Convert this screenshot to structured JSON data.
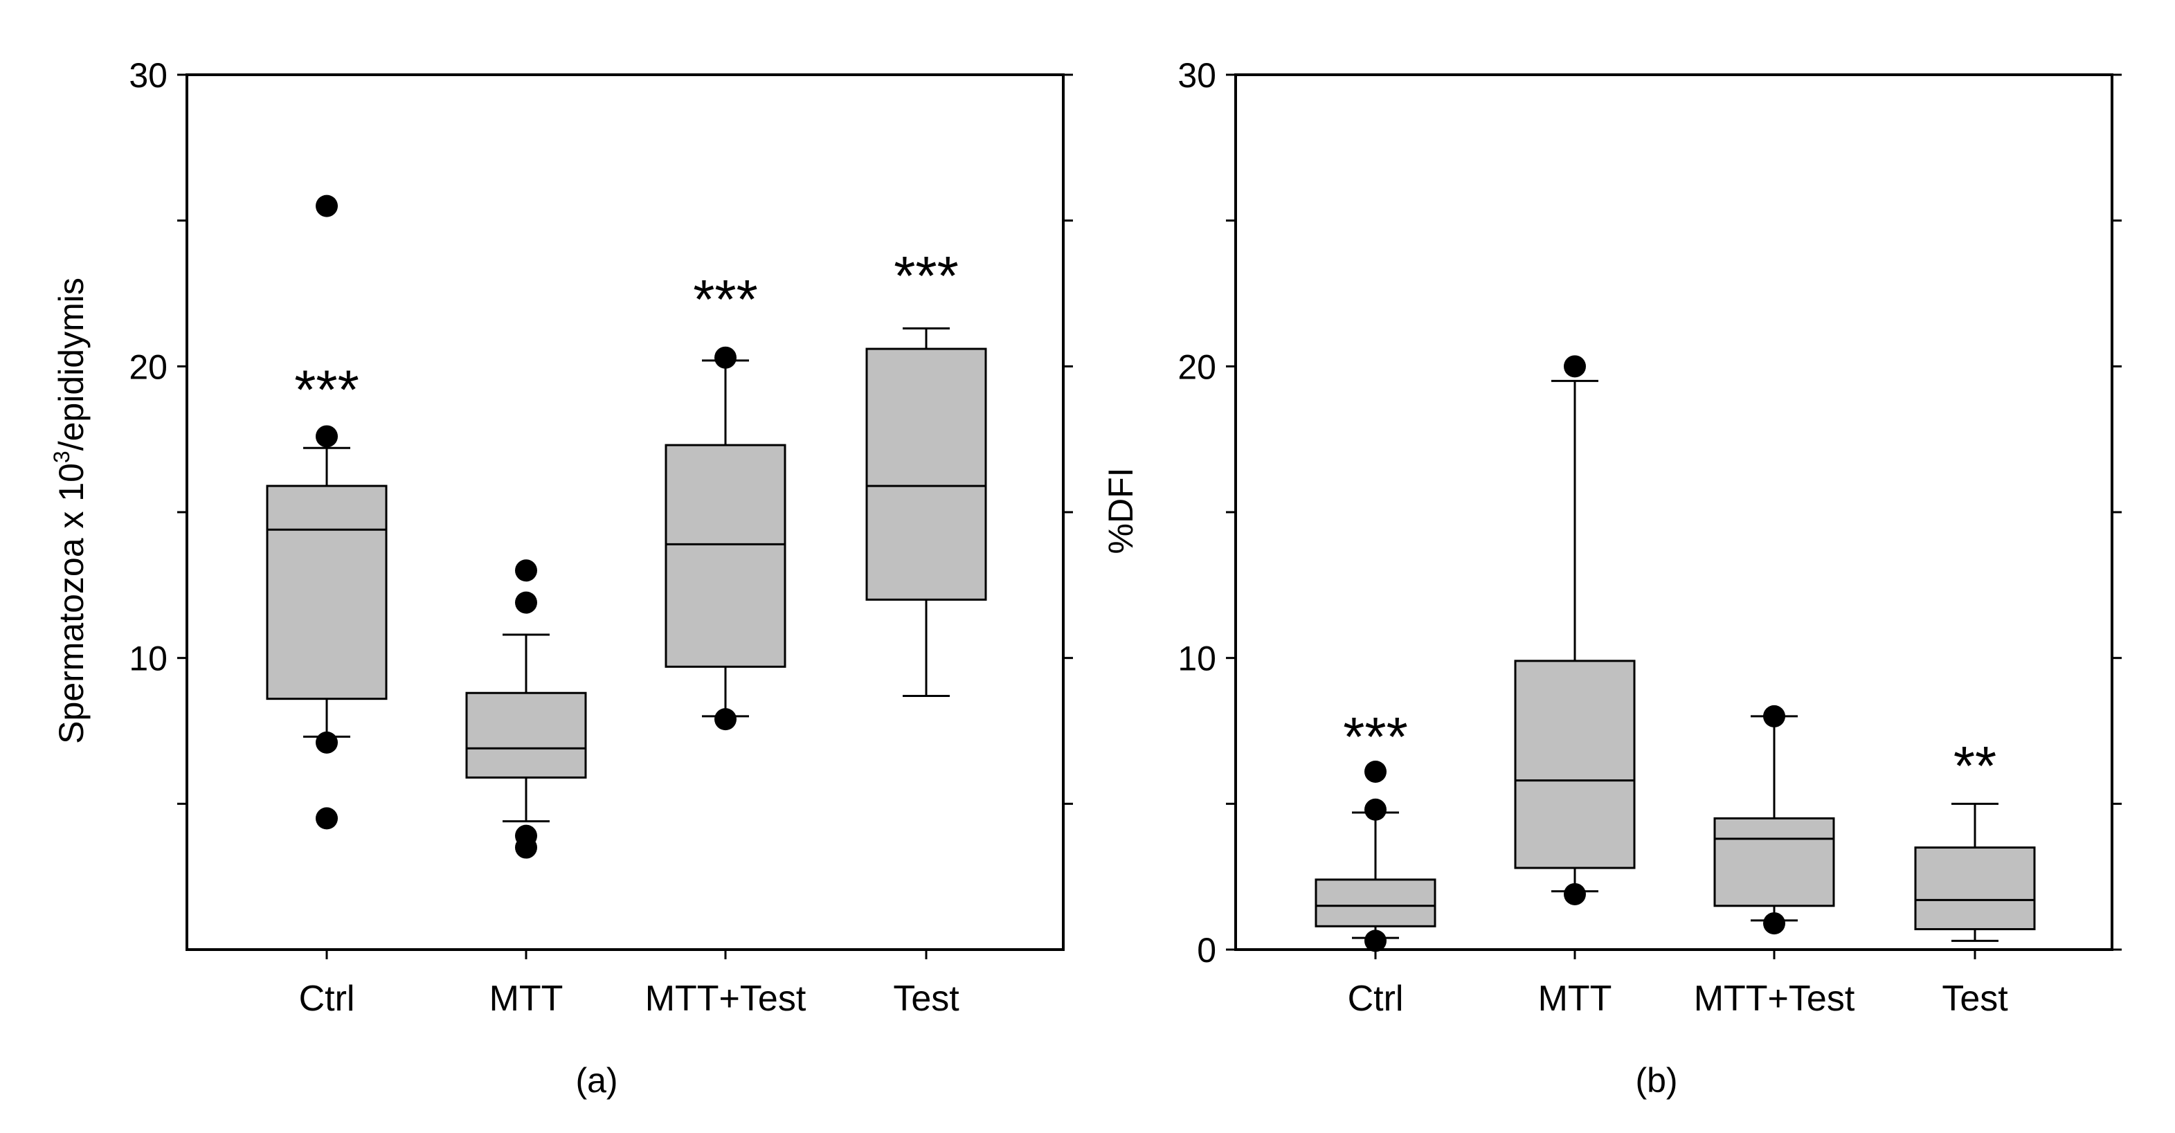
{
  "chart_data": [
    {
      "type": "box",
      "panel_label": "(a)",
      "title": "",
      "xlabel": "",
      "ylabel_main": "Spermatozoa x 10",
      "ylabel_sup": "3",
      "ylabel_rest": "/epididymis",
      "ylim": [
        0,
        30
      ],
      "y_major_ticks": [
        10,
        20,
        30
      ],
      "y_minor_ticks": [
        5,
        15,
        25
      ],
      "categories": [
        "Ctrl",
        "MTT",
        "MTT+Test",
        "Test"
      ],
      "boxes": [
        {
          "name": "Ctrl",
          "whisker_low": 7.3,
          "q1": 8.6,
          "median": 14.4,
          "q3": 15.9,
          "whisker_high": 17.2,
          "outliers": [
            4.5,
            7.1,
            17.6,
            25.5
          ],
          "significance": "***",
          "sig_y": 19.5
        },
        {
          "name": "MTT",
          "whisker_low": 4.4,
          "q1": 5.9,
          "median": 6.9,
          "q3": 8.8,
          "whisker_high": 10.8,
          "outliers": [
            3.5,
            3.9,
            11.9,
            13.0
          ],
          "significance": "",
          "sig_y": 0
        },
        {
          "name": "MTT+Test",
          "whisker_low": 8.0,
          "q1": 9.7,
          "median": 13.9,
          "q3": 17.3,
          "whisker_high": 20.2,
          "outliers": [
            7.9,
            20.3
          ],
          "significance": "***",
          "sig_y": 22.6
        },
        {
          "name": "Test",
          "whisker_low": 8.7,
          "q1": 12.0,
          "median": 15.9,
          "q3": 20.6,
          "whisker_high": 21.3,
          "outliers": [],
          "significance": "***",
          "sig_y": 23.4
        }
      ],
      "box_color": "#c0c0c0"
    },
    {
      "type": "box",
      "panel_label": "(b)",
      "title": "",
      "xlabel": "",
      "ylabel_main": "%DFI",
      "ylabel_sup": "",
      "ylabel_rest": "",
      "ylim": [
        0,
        30
      ],
      "y_major_ticks": [
        0,
        10,
        20,
        30
      ],
      "y_minor_ticks": [
        5,
        15,
        25
      ],
      "categories": [
        "Ctrl",
        "MTT",
        "MTT+Test",
        "Test"
      ],
      "boxes": [
        {
          "name": "Ctrl",
          "whisker_low": 0.4,
          "q1": 0.8,
          "median": 1.5,
          "q3": 2.4,
          "whisker_high": 4.7,
          "outliers": [
            0.3,
            4.8,
            6.1
          ],
          "significance": "***",
          "sig_y": 7.6
        },
        {
          "name": "MTT",
          "whisker_low": 2.0,
          "q1": 2.8,
          "median": 5.8,
          "q3": 9.9,
          "whisker_high": 19.5,
          "outliers": [
            1.9,
            20.0
          ],
          "significance": "",
          "sig_y": 0
        },
        {
          "name": "MTT+Test",
          "whisker_low": 1.0,
          "q1": 1.5,
          "median": 3.8,
          "q3": 4.5,
          "whisker_high": 8.0,
          "outliers": [
            0.9,
            8.0
          ],
          "significance": "",
          "sig_y": 0
        },
        {
          "name": "Test",
          "whisker_low": 0.3,
          "q1": 0.7,
          "median": 1.7,
          "q3": 3.5,
          "whisker_high": 5.0,
          "outliers": [],
          "significance": "**",
          "sig_y": 6.6
        }
      ],
      "box_color": "#c0c0c0"
    }
  ]
}
